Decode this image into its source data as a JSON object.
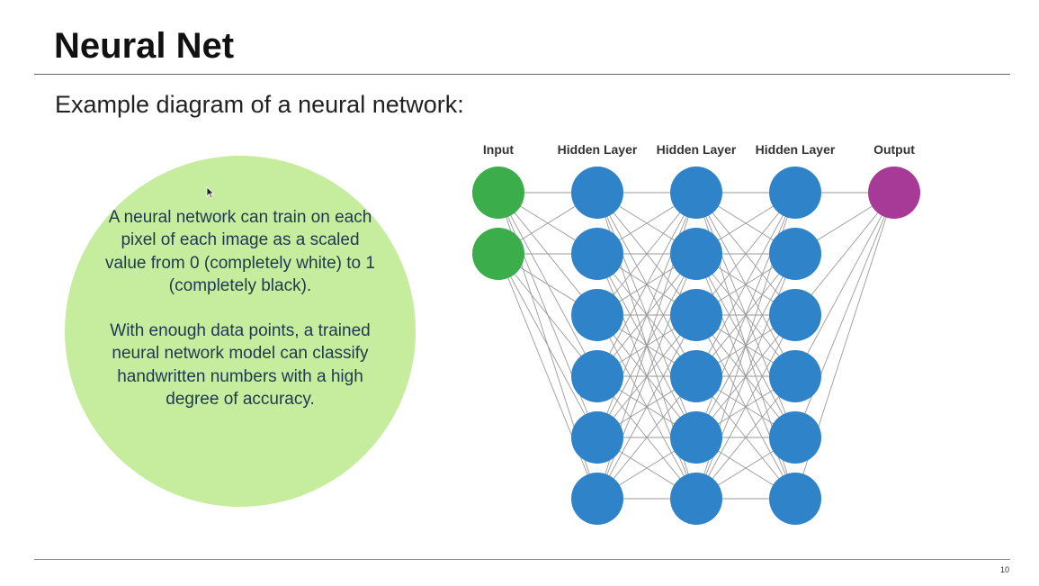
{
  "slide": {
    "title": "Neural Net",
    "subtitle": "Example diagram of a neural network:",
    "page_number": "10"
  },
  "bubble": {
    "paragraph1": "A neural network can train on each pixel of each image as a scaled value from 0 (completely white) to 1 (completely black).",
    "paragraph2": "With enough data points, a trained neural network model can classify handwritten numbers with a high degree of accuracy.",
    "color": "#c6ec9e"
  },
  "network": {
    "layers": [
      {
        "label": "Input",
        "nodes": 2,
        "color": "#3cad4b"
      },
      {
        "label": "Hidden Layer",
        "nodes": 6,
        "color": "#2f83c9"
      },
      {
        "label": "Hidden Layer",
        "nodes": 6,
        "color": "#2f83c9"
      },
      {
        "label": "Hidden Layer",
        "nodes": 6,
        "color": "#2f83c9"
      },
      {
        "label": "Output",
        "nodes": 1,
        "color": "#a63a96"
      }
    ],
    "edge_color": "#9a9a9a"
  }
}
